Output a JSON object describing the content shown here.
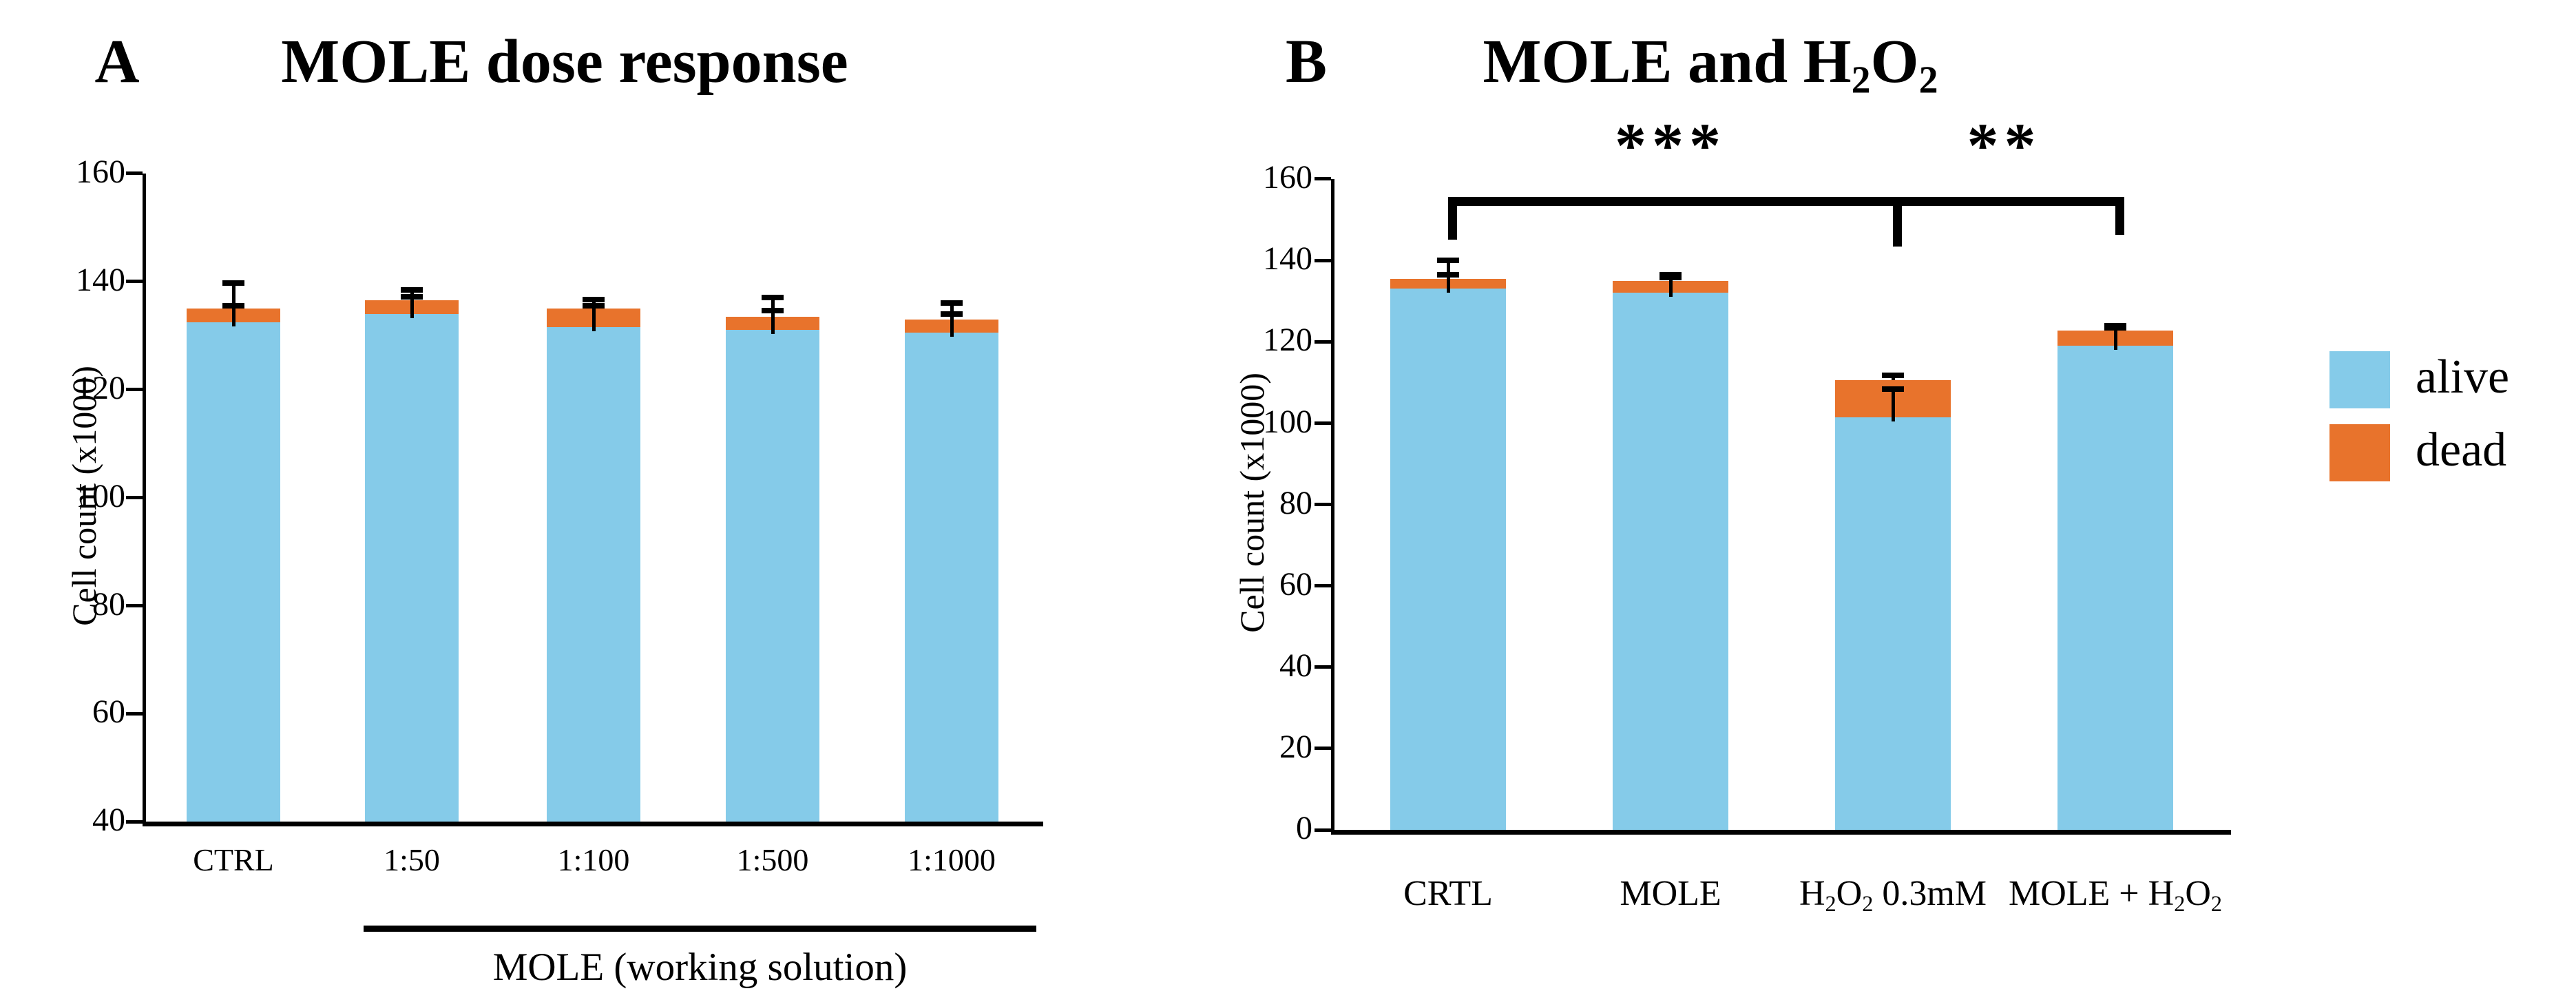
{
  "colors": {
    "alive": "#85CBE9",
    "dead": "#E8732C",
    "axis": "#000000",
    "background": "#ffffff"
  },
  "legend": {
    "items": [
      {
        "label": "alive",
        "color_key": "alive"
      },
      {
        "label": "dead",
        "color_key": "dead"
      }
    ]
  },
  "chart_data": [
    {
      "type": "bar",
      "stacked": true,
      "panel_label": "A",
      "title": "MOLE dose response",
      "title_rich": [
        [
          "MOLE dose response",
          false
        ]
      ],
      "ylabel": "Cell count (x1000)",
      "ylim": [
        40,
        160
      ],
      "yticks": [
        40,
        60,
        80,
        100,
        120,
        140,
        160
      ],
      "grid": false,
      "legend_position": "none",
      "categories": [
        "CTRL",
        "1:50",
        "1:100",
        "1:500",
        "1:1000"
      ],
      "categories_rich": [
        [
          [
            "CTRL",
            false
          ]
        ],
        [
          [
            "1:50",
            false
          ]
        ],
        [
          [
            "1:100",
            false
          ]
        ],
        [
          [
            "1:500",
            false
          ]
        ],
        [
          [
            "1:1000",
            false
          ]
        ]
      ],
      "series": [
        {
          "name": "alive",
          "values": [
            132.5,
            134,
            131.5,
            131,
            130.5
          ]
        },
        {
          "name": "dead",
          "values": [
            2.5,
            2.5,
            3.5,
            2.5,
            2.5
          ]
        }
      ],
      "stack_totals": [
        135,
        136.5,
        135,
        133.5,
        133
      ],
      "error_alive_plus": [
        3,
        3.2,
        4,
        3.6,
        3.5
      ],
      "error_total_plus": [
        4.7,
        2,
        1.6,
        3.5,
        3
      ],
      "group_annotation": {
        "label": "MOLE (working solution)",
        "from_index": 1,
        "to_index": 4
      }
    },
    {
      "type": "bar",
      "stacked": true,
      "panel_label": "B",
      "title": "MOLE and H2O2",
      "title_rich": [
        [
          "MOLE and H",
          false
        ],
        [
          "2",
          true
        ],
        [
          "O",
          false
        ],
        [
          "2",
          true
        ]
      ],
      "ylabel": "Cell count (x1000)",
      "ylim": [
        0,
        160
      ],
      "yticks": [
        0,
        20,
        40,
        60,
        80,
        100,
        120,
        140,
        160
      ],
      "grid": false,
      "legend_position": "right",
      "categories": [
        "CRTL",
        "MOLE",
        "H2O2 0.3mM",
        "MOLE + H2O2"
      ],
      "categories_rich": [
        [
          [
            "CRTL",
            false
          ]
        ],
        [
          [
            "MOLE",
            false
          ]
        ],
        [
          [
            "H",
            false
          ],
          [
            "2",
            true
          ],
          [
            "O",
            false
          ],
          [
            "2",
            true
          ],
          [
            " 0.3mM",
            false
          ]
        ],
        [
          [
            "MOLE + H",
            false
          ],
          [
            "2",
            true
          ],
          [
            "O",
            false
          ],
          [
            "2",
            true
          ]
        ]
      ],
      "series": [
        {
          "name": "alive",
          "values": [
            133,
            132,
            101.5,
            119
          ]
        },
        {
          "name": "dead",
          "values": [
            2.5,
            3,
            9,
            3.7
          ]
        }
      ],
      "stack_totals": [
        135.5,
        135,
        110.5,
        122.7
      ],
      "error_alive_plus": [
        3.5,
        3.8,
        6.8,
        4.5
      ],
      "error_total_plus": [
        4.5,
        1.5,
        1.2,
        1.3
      ],
      "significance": [
        {
          "from_index": 0,
          "to_index": 2,
          "label": "***"
        },
        {
          "from_index": 2,
          "to_index": 3,
          "label": "**"
        }
      ]
    }
  ]
}
